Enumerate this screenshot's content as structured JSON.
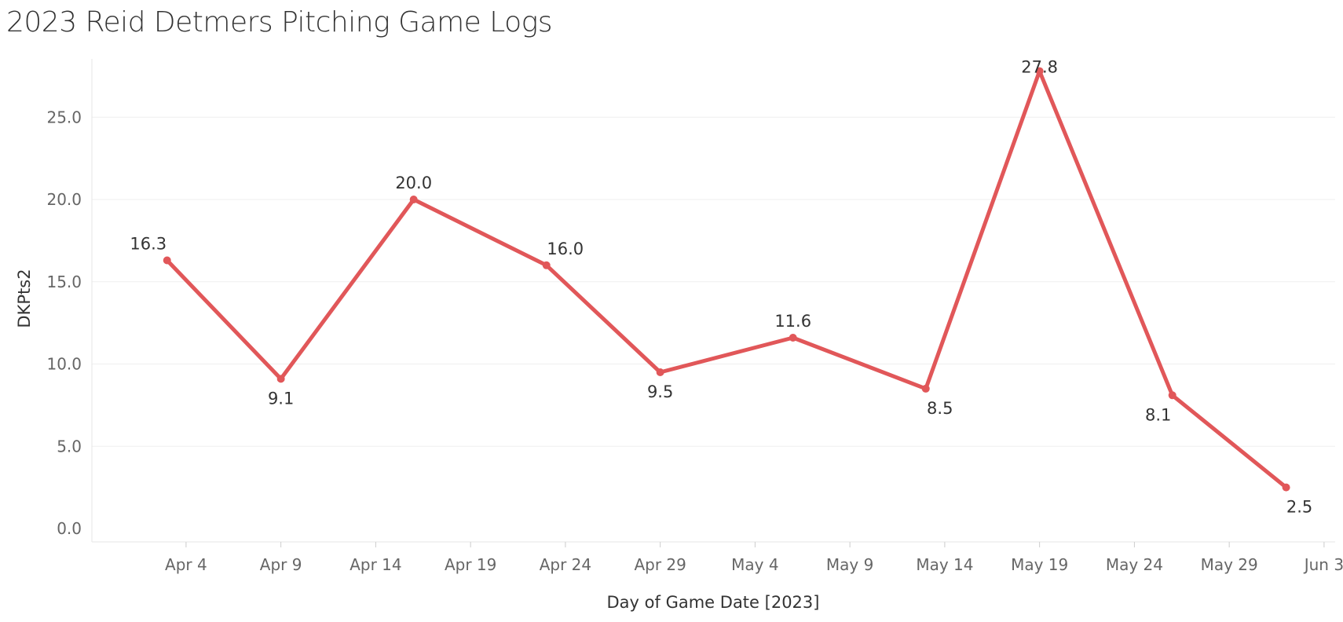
{
  "chart_data": {
    "type": "line",
    "title": "2023 Reid Detmers Pitching Game Logs",
    "xlabel": "Day of Game Date [2023]",
    "ylabel": "DKPts2",
    "x_ticks": [
      "Apr 4",
      "Apr 9",
      "Apr 14",
      "Apr 19",
      "Apr 24",
      "Apr 29",
      "May 4",
      "May 9",
      "May 14",
      "May 19",
      "May 24",
      "May 29",
      "Jun 3"
    ],
    "x_tick_dates": [
      "2023-04-04",
      "2023-04-09",
      "2023-04-14",
      "2023-04-19",
      "2023-04-24",
      "2023-04-29",
      "2023-05-04",
      "2023-05-09",
      "2023-05-14",
      "2023-05-19",
      "2023-05-24",
      "2023-05-29",
      "2023-06-03"
    ],
    "y_ticks": [
      "0.0",
      "5.0",
      "10.0",
      "15.0",
      "20.0",
      "25.0"
    ],
    "ylim": [
      0,
      28
    ],
    "xlim": [
      "2023-03-29",
      "2023-06-04"
    ],
    "grid": true,
    "color": "#e15759",
    "series": [
      {
        "x": [
          "2023-04-03",
          "2023-04-09",
          "2023-04-16",
          "2023-04-23",
          "2023-04-29",
          "2023-05-06",
          "2023-05-13",
          "2023-05-19",
          "2023-05-26",
          "2023-06-01"
        ],
        "values": [
          16.3,
          9.1,
          20.0,
          16.0,
          9.5,
          11.6,
          8.5,
          27.8,
          8.1,
          2.5
        ],
        "labels": [
          "16.3",
          "9.1",
          "20.0",
          "16.0",
          "9.5",
          "11.6",
          "8.5",
          "27.8",
          "8.1",
          "2.5"
        ]
      }
    ]
  }
}
